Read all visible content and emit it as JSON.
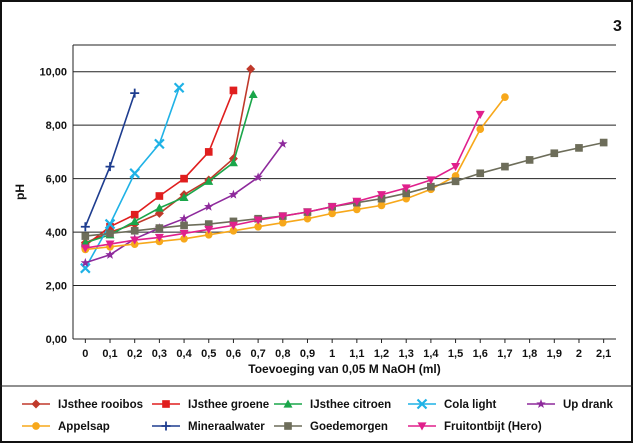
{
  "figure_number": "3",
  "colors": {
    "ijsthee_rooibos": "#c0392b",
    "ijsthee_groene": "#e01e1e",
    "ijsthee_citroen": "#1aa64a",
    "cola_light": "#1fb2e6",
    "up_drank": "#8e2a9c",
    "appelsap": "#f7a81b",
    "mineraalwater": "#1e3d8f",
    "goedemorgen": "#6d6d5a",
    "fruitontbijt": "#e0208c"
  },
  "chart_data": {
    "type": "line",
    "title": "",
    "xlabel": "Toevoeging van 0,05 M NaOH (ml)",
    "ylabel": "pH",
    "ylim": [
      0,
      11
    ],
    "xlim": [
      -0.05,
      2.15
    ],
    "grid": "horizontal",
    "legend_position": "bottom",
    "x_ticks": [
      {
        "value": 0,
        "label": "0"
      },
      {
        "value": 0.1,
        "label": "0,1"
      },
      {
        "value": 0.2,
        "label": "0,2"
      },
      {
        "value": 0.3,
        "label": "0,3"
      },
      {
        "value": 0.4,
        "label": "0,4"
      },
      {
        "value": 0.5,
        "label": "0,5"
      },
      {
        "value": 0.6,
        "label": "0,6"
      },
      {
        "value": 0.7,
        "label": "0,7"
      },
      {
        "value": 0.8,
        "label": "0,8"
      },
      {
        "value": 0.9,
        "label": "0,9"
      },
      {
        "value": 1.0,
        "label": "1"
      },
      {
        "value": 1.1,
        "label": "1,1"
      },
      {
        "value": 1.2,
        "label": "1,2"
      },
      {
        "value": 1.3,
        "label": "1,3"
      },
      {
        "value": 1.4,
        "label": "1,4"
      },
      {
        "value": 1.5,
        "label": "1,5"
      },
      {
        "value": 1.6,
        "label": "1,6"
      },
      {
        "value": 1.7,
        "label": "1,7"
      },
      {
        "value": 1.8,
        "label": "1,8"
      },
      {
        "value": 1.9,
        "label": "1,9"
      },
      {
        "value": 2.0,
        "label": "2"
      },
      {
        "value": 2.1,
        "label": "2,1"
      }
    ],
    "y_ticks": [
      {
        "value": 0,
        "label": "0,00"
      },
      {
        "value": 2,
        "label": "2,00"
      },
      {
        "value": 4,
        "label": "4,00"
      },
      {
        "value": 6,
        "label": "6,00"
      },
      {
        "value": 8,
        "label": "8,00"
      },
      {
        "value": 10,
        "label": "10,00"
      }
    ],
    "series": [
      {
        "key": "ijsthee_rooibos",
        "name": "IJsthee rooibos",
        "marker": "diamond",
        "points": [
          [
            0,
            3.6
          ],
          [
            0.1,
            4.0
          ],
          [
            0.2,
            4.3
          ],
          [
            0.3,
            4.7
          ],
          [
            0.4,
            5.4
          ],
          [
            0.5,
            5.95
          ],
          [
            0.6,
            6.75
          ],
          [
            0.67,
            10.1
          ]
        ]
      },
      {
        "key": "ijsthee_groene",
        "name": "IJsthee groene",
        "marker": "square",
        "points": [
          [
            0,
            3.5
          ],
          [
            0.1,
            4.2
          ],
          [
            0.2,
            4.65
          ],
          [
            0.3,
            5.35
          ],
          [
            0.4,
            6.0
          ],
          [
            0.5,
            7.0
          ],
          [
            0.6,
            9.3
          ]
        ]
      },
      {
        "key": "ijsthee_citroen",
        "name": "IJsthee citroen",
        "marker": "triangle",
        "points": [
          [
            0,
            3.6
          ],
          [
            0.1,
            3.9
          ],
          [
            0.2,
            4.4
          ],
          [
            0.3,
            4.9
          ],
          [
            0.4,
            5.3
          ],
          [
            0.5,
            5.9
          ],
          [
            0.6,
            6.6
          ],
          [
            0.68,
            9.15
          ]
        ]
      },
      {
        "key": "cola_light",
        "name": "Cola light",
        "marker": "x",
        "points": [
          [
            0,
            2.65
          ],
          [
            0.1,
            4.3
          ],
          [
            0.2,
            6.2
          ],
          [
            0.3,
            7.3
          ],
          [
            0.38,
            9.4
          ]
        ]
      },
      {
        "key": "up_drank",
        "name": "Up drank",
        "marker": "star",
        "points": [
          [
            0,
            2.85
          ],
          [
            0.1,
            3.15
          ],
          [
            0.2,
            3.75
          ],
          [
            0.3,
            4.15
          ],
          [
            0.4,
            4.5
          ],
          [
            0.5,
            4.95
          ],
          [
            0.6,
            5.4
          ],
          [
            0.7,
            6.05
          ],
          [
            0.8,
            7.3
          ]
        ]
      },
      {
        "key": "appelsap",
        "name": "Appelsap",
        "marker": "circle",
        "points": [
          [
            0,
            3.35
          ],
          [
            0.1,
            3.45
          ],
          [
            0.2,
            3.55
          ],
          [
            0.3,
            3.65
          ],
          [
            0.4,
            3.75
          ],
          [
            0.5,
            3.9
          ],
          [
            0.6,
            4.05
          ],
          [
            0.7,
            4.2
          ],
          [
            0.8,
            4.35
          ],
          [
            0.9,
            4.5
          ],
          [
            1.0,
            4.7
          ],
          [
            1.1,
            4.85
          ],
          [
            1.2,
            5.0
          ],
          [
            1.3,
            5.25
          ],
          [
            1.4,
            5.6
          ],
          [
            1.5,
            6.1
          ],
          [
            1.6,
            7.85
          ],
          [
            1.7,
            9.05
          ]
        ]
      },
      {
        "key": "mineraalwater",
        "name": "Mineraalwater",
        "marker": "plus",
        "points": [
          [
            0,
            4.2
          ],
          [
            0.1,
            6.45
          ],
          [
            0.2,
            9.2
          ]
        ]
      },
      {
        "key": "goedemorgen",
        "name": "Goedemorgen",
        "marker": "square",
        "points": [
          [
            0,
            3.85
          ],
          [
            0.1,
            3.95
          ],
          [
            0.2,
            4.05
          ],
          [
            0.3,
            4.15
          ],
          [
            0.4,
            4.25
          ],
          [
            0.5,
            4.3
          ],
          [
            0.6,
            4.4
          ],
          [
            0.7,
            4.5
          ],
          [
            0.8,
            4.6
          ],
          [
            0.9,
            4.75
          ],
          [
            1.0,
            4.95
          ],
          [
            1.1,
            5.1
          ],
          [
            1.2,
            5.25
          ],
          [
            1.3,
            5.45
          ],
          [
            1.4,
            5.7
          ],
          [
            1.5,
            5.9
          ],
          [
            1.6,
            6.2
          ],
          [
            1.7,
            6.45
          ],
          [
            1.8,
            6.7
          ],
          [
            1.9,
            6.95
          ],
          [
            2.0,
            7.15
          ],
          [
            2.1,
            7.35
          ]
        ]
      },
      {
        "key": "fruitontbijt",
        "name": "Fruitontbijt (Hero)",
        "marker": "triangle-down",
        "points": [
          [
            0,
            3.4
          ],
          [
            0.1,
            3.55
          ],
          [
            0.2,
            3.7
          ],
          [
            0.3,
            3.8
          ],
          [
            0.4,
            3.95
          ],
          [
            0.5,
            4.1
          ],
          [
            0.6,
            4.25
          ],
          [
            0.7,
            4.45
          ],
          [
            0.8,
            4.6
          ],
          [
            0.9,
            4.75
          ],
          [
            1.0,
            4.95
          ],
          [
            1.1,
            5.15
          ],
          [
            1.2,
            5.4
          ],
          [
            1.3,
            5.65
          ],
          [
            1.4,
            5.95
          ],
          [
            1.5,
            6.45
          ],
          [
            1.6,
            8.4
          ]
        ]
      }
    ]
  }
}
